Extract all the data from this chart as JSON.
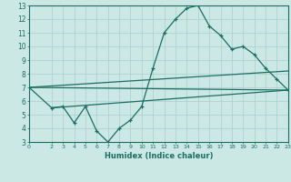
{
  "title": "",
  "xlabel": "Humidex (Indice chaleur)",
  "bg_color": "#cce8e4",
  "grid_color": "#aacfcb",
  "line_color": "#1a6e64",
  "xlim": [
    0,
    23
  ],
  "ylim": [
    3,
    13
  ],
  "xticks": [
    0,
    2,
    3,
    4,
    5,
    6,
    7,
    8,
    9,
    10,
    11,
    12,
    13,
    14,
    15,
    16,
    17,
    18,
    19,
    20,
    21,
    22,
    23
  ],
  "yticks": [
    3,
    4,
    5,
    6,
    7,
    8,
    9,
    10,
    11,
    12,
    13
  ],
  "curve_x": [
    0,
    2,
    3,
    4,
    5,
    6,
    7,
    8,
    9,
    10,
    11,
    12,
    13,
    14,
    15,
    16,
    17,
    18,
    19,
    20,
    21,
    22,
    23
  ],
  "curve_y": [
    7.0,
    5.5,
    5.6,
    4.4,
    5.6,
    3.8,
    3.0,
    4.0,
    4.6,
    5.6,
    8.4,
    11.0,
    12.0,
    12.8,
    13.0,
    11.5,
    10.8,
    9.8,
    10.0,
    9.4,
    8.4,
    7.6,
    6.8
  ],
  "line1_x": [
    0,
    23
  ],
  "line1_y": [
    7.0,
    6.8
  ],
  "line2_x": [
    0,
    23
  ],
  "line2_y": [
    7.0,
    8.2
  ],
  "line3_x": [
    2,
    23
  ],
  "line3_y": [
    5.5,
    6.8
  ]
}
